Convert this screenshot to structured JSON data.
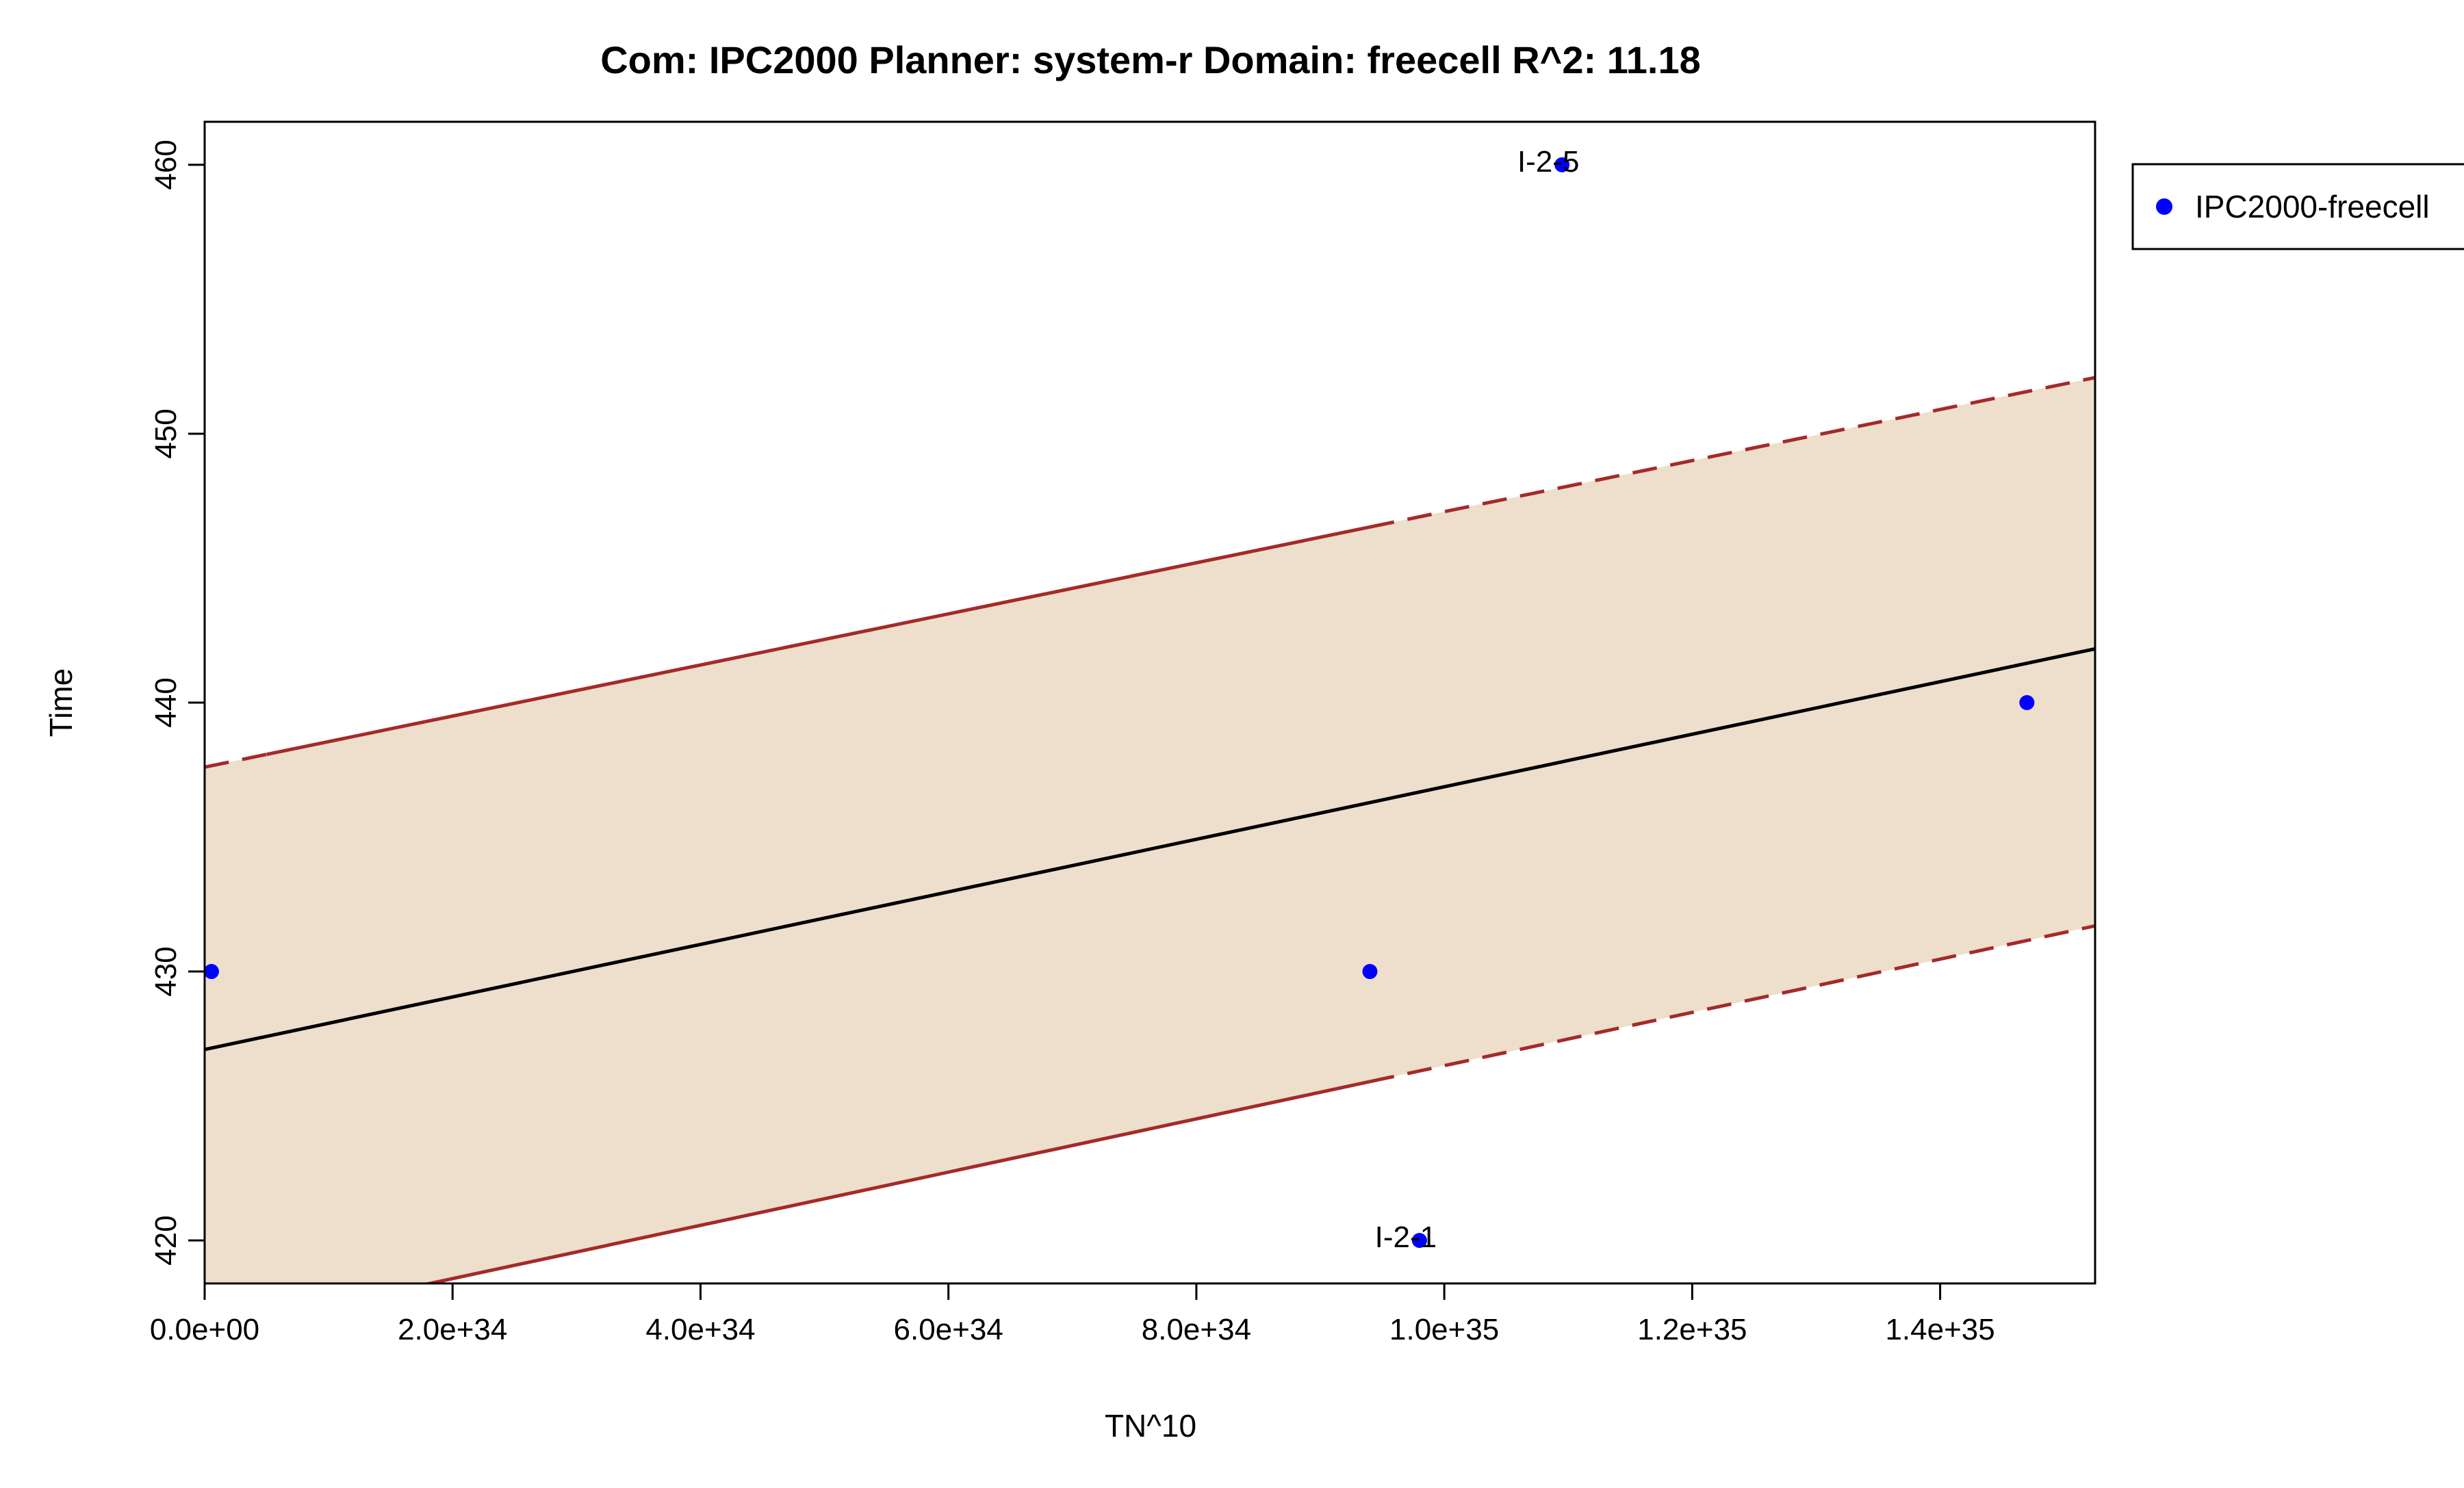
{
  "chart_data": {
    "type": "scatter",
    "title": "Com: IPC2000 Planner: system-r Domain: freecell R^2: 11.18",
    "xlabel": "TN^10",
    "ylabel": "Time",
    "xlim": [
      0,
      1.525e+35
    ],
    "ylim": [
      418.4,
      461.6
    ],
    "x_ticks": [
      0,
      2e+34,
      4e+34,
      6e+34,
      8e+34,
      1e+35,
      1.2e+35,
      1.4e+35
    ],
    "x_tick_labels": [
      "0.0e+00",
      "2.0e+34",
      "4.0e+34",
      "6.0e+34",
      "8.0e+34",
      "1.0e+35",
      "1.2e+35",
      "1.4e+35"
    ],
    "y_ticks": [
      420,
      430,
      440,
      450,
      460
    ],
    "y_tick_labels": [
      "420",
      "430",
      "440",
      "450",
      "460"
    ],
    "grid": false,
    "legend_position": "top-right outside plot",
    "series": [
      {
        "name": "IPC2000-freecell",
        "color": "#0000ff",
        "points": [
          {
            "x": 5.5e+32,
            "y": 430,
            "label": ""
          },
          {
            "x": 9.4e+34,
            "y": 430,
            "label": ""
          },
          {
            "x": 9.8e+34,
            "y": 420,
            "label": "I-2-1"
          },
          {
            "x": 1.095e+35,
            "y": 460,
            "label": "I-2-5"
          },
          {
            "x": 1.47e+35,
            "y": 440,
            "label": ""
          }
        ]
      }
    ],
    "fit": {
      "color": "#000000",
      "intercept": 427.1,
      "slope": 9.77e-35
    },
    "band": {
      "fill_color": "#eddfcc",
      "line_color": "#a52a2a",
      "upper": {
        "intercept": 437.6,
        "slope": 9.5e-35
      },
      "lower": {
        "intercept": 416.6,
        "slope": 9.9e-35
      },
      "solid_range": [
        5e+33,
        9.4e+34
      ]
    }
  }
}
